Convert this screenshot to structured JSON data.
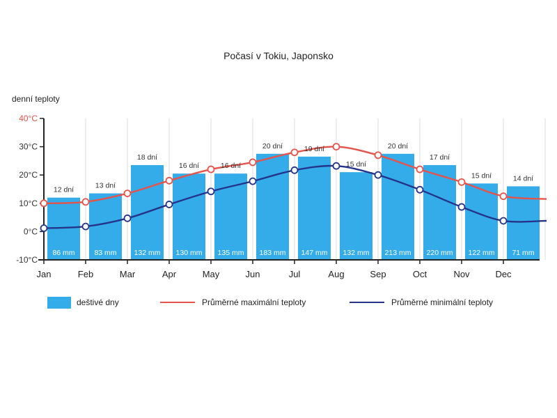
{
  "chart_data": {
    "type": "bar",
    "title": "Počasí v Tokiu, Japonsko",
    "ylabel": "denní teploty",
    "ylim": [
      -10,
      40
    ],
    "yticks": [
      "-10°C",
      "0°C",
      "10°C",
      "20°C",
      "30°C",
      "40°C"
    ],
    "ytick_values": [
      -10,
      0,
      10,
      20,
      30,
      40
    ],
    "grid": "vertical",
    "legend_position": "bottom",
    "categories": [
      "Jan",
      "Feb",
      "Mar",
      "Apr",
      "May",
      "Jun",
      "Jul",
      "Aug",
      "Sep",
      "Oct",
      "Nov",
      "Dec"
    ],
    "bar_series": {
      "name": "deštivé dny",
      "color": "#34ace9",
      "values": [
        12,
        13,
        18,
        16,
        16,
        20,
        19,
        15,
        20,
        17,
        15,
        14
      ],
      "labels": [
        "12 dní",
        "13 dní",
        "18 dní",
        "16 dní",
        "16 dní",
        "20 dní",
        "19 dní",
        "15 dní",
        "20 dní",
        "17 dní",
        "15 dní",
        "14 dní"
      ],
      "precipitation": [
        "86 mm",
        "83 mm",
        "132 mm",
        "130 mm",
        "135 mm",
        "183 mm",
        "147 mm",
        "132 mm",
        "213 mm",
        "220 mm",
        "122 mm",
        "71 mm"
      ],
      "bar_tops_celsius": [
        12,
        13.5,
        23.5,
        20.5,
        20.5,
        27.5,
        26.5,
        21,
        27.5,
        23.5,
        17,
        16
      ]
    },
    "series": [
      {
        "name": "Průměrné maximální teploty",
        "color": "#e5534b",
        "values": [
          10,
          10.5,
          13.5,
          18,
          22,
          24.5,
          28,
          30,
          27,
          22,
          17.5,
          12.5
        ]
      },
      {
        "name": "Průměrné minimální teploty",
        "color": "#25348a",
        "values": [
          1.2,
          1.8,
          4.7,
          9.6,
          14.2,
          17.8,
          21.7,
          23.2,
          20,
          14.8,
          8.7,
          3.8
        ]
      }
    ]
  }
}
